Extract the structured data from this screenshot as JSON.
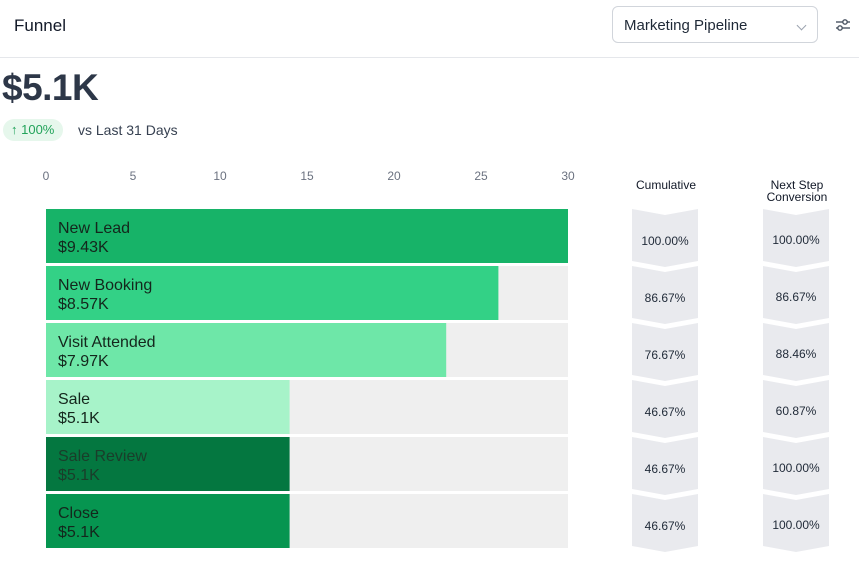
{
  "header": {
    "title": "Funnel",
    "select_value": "Marketing Pipeline"
  },
  "summary": {
    "value": "$5.1K",
    "change": "↑ 100%",
    "comparison": "vs Last 31 Days"
  },
  "columns": {
    "cumulative": "Cumulative",
    "next_step": [
      "Next Step",
      "Conversion"
    ]
  },
  "colors": {
    "track": "#efefef",
    "arrow": "#e9eaee"
  },
  "chart_data": {
    "type": "bar",
    "orientation": "horizontal",
    "xlim": [
      0,
      30
    ],
    "xticks": [
      0,
      5,
      10,
      15,
      20,
      25,
      30
    ],
    "grid": false,
    "stages": [
      {
        "name": "New Lead",
        "amount": "$9.43K",
        "value": 30,
        "color": "#17b368",
        "cumulative": "100.00%",
        "next_step": "100.00%"
      },
      {
        "name": "New Booking",
        "amount": "$8.57K",
        "value": 26,
        "color": "#33d186",
        "cumulative": "86.67%",
        "next_step": "86.67%"
      },
      {
        "name": "Visit Attended",
        "amount": "$7.97K",
        "value": 23,
        "color": "#6ee7a8",
        "cumulative": "76.67%",
        "next_step": "88.46%"
      },
      {
        "name": "Sale",
        "amount": "$5.1K",
        "value": 14,
        "color": "#a7f3c9",
        "cumulative": "46.67%",
        "next_step": "60.87%"
      },
      {
        "name": "Sale Review",
        "amount": "$5.1K",
        "value": 14,
        "color": "#047740",
        "cumulative": "46.67%",
        "next_step": "100.00%"
      },
      {
        "name": "Close",
        "amount": "$5.1K",
        "value": 14,
        "color": "#069550",
        "cumulative": "46.67%",
        "next_step": "100.00%"
      }
    ]
  }
}
